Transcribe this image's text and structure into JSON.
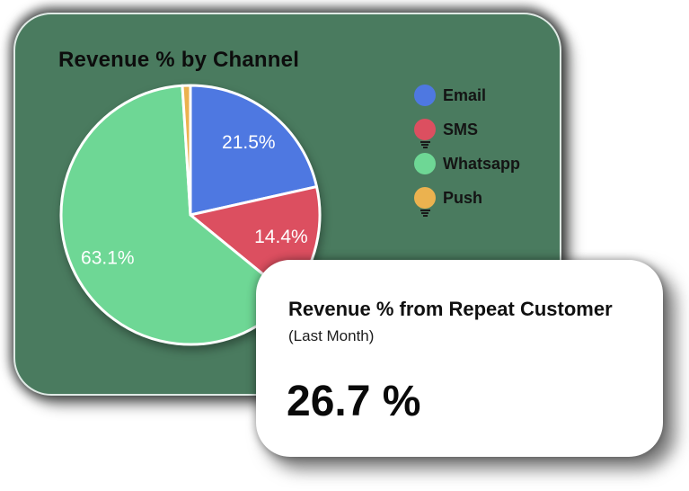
{
  "window": {
    "background": "#ffffff"
  },
  "chart_card": {
    "title": "Revenue % by Channel",
    "background": "#4a7b5f",
    "border_color": "#dfeae5"
  },
  "chart_data": {
    "type": "pie",
    "title": "Revenue % by Channel",
    "labels": [
      "Email",
      "SMS",
      "Whatsapp",
      "Push"
    ],
    "values": [
      21.5,
      14.4,
      63.1,
      1.0
    ],
    "display_labels": [
      "21.5%",
      "14.4%",
      "63.1%",
      ""
    ],
    "colors": [
      "#4e78e1",
      "#dc4f60",
      "#6ed795",
      "#ebb24f"
    ],
    "start_angle_deg": -90,
    "direction": "clockwise",
    "slice_stroke_color": "#ffffff",
    "slice_label_color": "#ffffff",
    "legend_position": "right-of-chart",
    "pct_label_distance": 0.72
  },
  "stat_card": {
    "title": "Revenue % from Repeat Customer",
    "subtitle": "(Last Month)",
    "value": "26.7 %"
  }
}
